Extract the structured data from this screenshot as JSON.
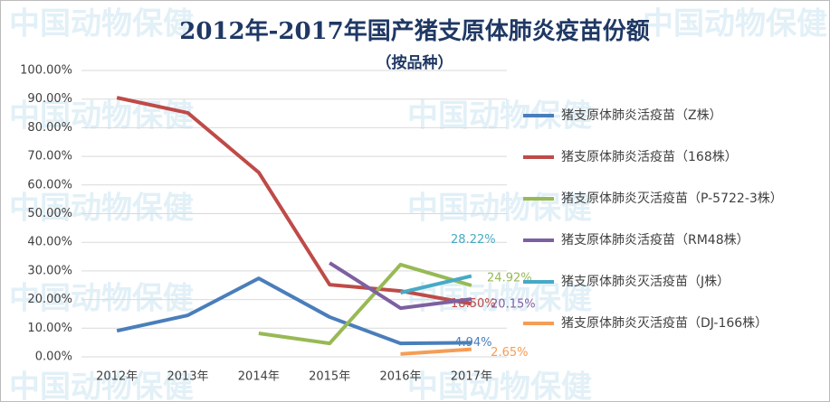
{
  "chart_data": {
    "type": "line",
    "title": "2012年-2017年国产猪支原体肺炎疫苗份额",
    "subtitle": "（按品种）",
    "watermark": "中国动物保健",
    "categories": [
      "2012年",
      "2013年",
      "2014年",
      "2015年",
      "2016年",
      "2017年"
    ],
    "series": [
      {
        "name": "猪支原体肺炎活疫苗（Z株）",
        "color": "#4a7ebb",
        "values": [
          9.1,
          14.5,
          27.4,
          13.9,
          4.7,
          4.94
        ],
        "value_labels": [
          null,
          null,
          null,
          null,
          null,
          "4.94%"
        ]
      },
      {
        "name": "猪支原体肺炎活疫苗（168株）",
        "color": "#be4b48",
        "values": [
          90.5,
          85.2,
          64.4,
          25.2,
          23,
          18.5
        ],
        "value_labels": [
          null,
          null,
          null,
          null,
          null,
          "18.50%"
        ]
      },
      {
        "name": "猪支原体肺炎灭活疫苗（P-5722-3株）",
        "color": "#98b954",
        "values": [
          null,
          null,
          8.2,
          4.7,
          32.2,
          24.92
        ],
        "value_labels": [
          null,
          null,
          null,
          null,
          null,
          "24.92%"
        ]
      },
      {
        "name": "猪支原体肺炎活疫苗（RM48株）",
        "color": "#7d60a0",
        "values": [
          null,
          null,
          null,
          32.8,
          17,
          20.15
        ],
        "value_labels": [
          null,
          null,
          null,
          null,
          null,
          "20.15%"
        ]
      },
      {
        "name": "猪支原体肺炎灭活疫苗（J株）",
        "color": "#46aac5",
        "values": [
          null,
          null,
          null,
          null,
          22.4,
          28.22
        ],
        "value_labels": [
          null,
          null,
          null,
          null,
          null,
          "28.22%"
        ]
      },
      {
        "name": "猪支原体肺炎灭活疫苗（DJ-166株）",
        "color": "#f59d56",
        "values": [
          null,
          null,
          null,
          null,
          1,
          2.65
        ],
        "value_labels": [
          null,
          null,
          null,
          null,
          null,
          "2.65%"
        ]
      }
    ],
    "ylim": [
      0,
      100
    ],
    "yticks": [
      {
        "value": 0,
        "label": "0.00%"
      },
      {
        "value": 10,
        "label": "10.00%"
      },
      {
        "value": 20,
        "label": "20.00%"
      },
      {
        "value": 30,
        "label": "30.00%"
      },
      {
        "value": 40,
        "label": "40.00%"
      },
      {
        "value": 50,
        "label": "50.00%"
      },
      {
        "value": 60,
        "label": "60.00%"
      },
      {
        "value": 70,
        "label": "70.00%"
      },
      {
        "value": 80,
        "label": "80.00%"
      },
      {
        "value": 90,
        "label": "90.00%"
      },
      {
        "value": 100,
        "label": "100.00%"
      }
    ],
    "grid": true
  }
}
